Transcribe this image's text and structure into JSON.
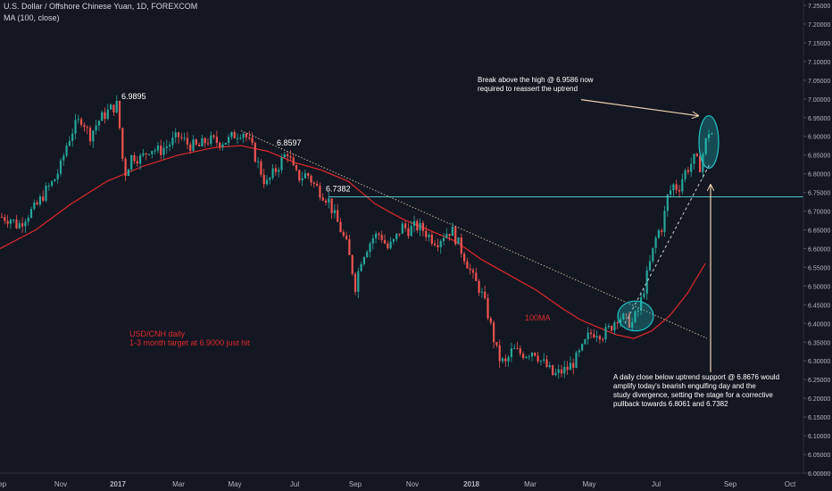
{
  "header": {
    "symbol_title": "U.S. Dollar / Offshore Chinese Yuan, 1D, FOREXCOM",
    "indicator": "MA (100, close)"
  },
  "chart_data": {
    "type": "candlestick",
    "y_axis": {
      "position": "right",
      "range": [
        6.0,
        7.25
      ],
      "ticks": [
        "7.25000",
        "7.20000",
        "7.15000",
        "7.10000",
        "7.05000",
        "7.00000",
        "6.95000",
        "6.90000",
        "6.85000",
        "6.80000",
        "6.75000",
        "6.70000",
        "6.65000",
        "6.60000",
        "6.55000",
        "6.50000",
        "6.45000",
        "6.40000",
        "6.35000",
        "6.30000",
        "6.25000",
        "6.20000",
        "6.15000",
        "6.10000",
        "6.05000",
        "6.00000"
      ]
    },
    "x_axis": {
      "ticks": [
        "Sep",
        "Nov",
        "2017",
        "Mar",
        "May",
        "Jul",
        "Sep",
        "Nov",
        "2018",
        "Mar",
        "May",
        "Jul",
        "Sep",
        "Oct"
      ],
      "tick_x": [
        0,
        68,
        132,
        200,
        263,
        330,
        398,
        462,
        528,
        594,
        660,
        735,
        818,
        885
      ],
      "range_days": [
        0,
        730
      ]
    },
    "price_path": [
      [
        0,
        6.685
      ],
      [
        12,
        6.68
      ],
      [
        20,
        6.66
      ],
      [
        30,
        6.69
      ],
      [
        40,
        6.71
      ],
      [
        50,
        6.75
      ],
      [
        60,
        6.78
      ],
      [
        68,
        6.82
      ],
      [
        75,
        6.88
      ],
      [
        82,
        6.92
      ],
      [
        92,
        6.95
      ],
      [
        100,
        6.9
      ],
      [
        110,
        6.94
      ],
      [
        118,
        6.96
      ],
      [
        125,
        6.975
      ],
      [
        132,
        6.985
      ],
      [
        136,
        6.86
      ],
      [
        140,
        6.8
      ],
      [
        148,
        6.85
      ],
      [
        158,
        6.84
      ],
      [
        168,
        6.87
      ],
      [
        178,
        6.86
      ],
      [
        190,
        6.88
      ],
      [
        200,
        6.9
      ],
      [
        210,
        6.88
      ],
      [
        222,
        6.87
      ],
      [
        232,
        6.89
      ],
      [
        245,
        6.885
      ],
      [
        256,
        6.89
      ],
      [
        263,
        6.905
      ],
      [
        272,
        6.915
      ],
      [
        282,
        6.87
      ],
      [
        290,
        6.82
      ],
      [
        298,
        6.77
      ],
      [
        306,
        6.8
      ],
      [
        314,
        6.83
      ],
      [
        322,
        6.86
      ],
      [
        330,
        6.8
      ],
      [
        336,
        6.79
      ],
      [
        344,
        6.8
      ],
      [
        352,
        6.77
      ],
      [
        360,
        6.75
      ],
      [
        368,
        6.73
      ],
      [
        374,
        6.69
      ],
      [
        380,
        6.66
      ],
      [
        388,
        6.61
      ],
      [
        394,
        6.55
      ],
      [
        398,
        6.5
      ],
      [
        404,
        6.57
      ],
      [
        410,
        6.6
      ],
      [
        418,
        6.63
      ],
      [
        426,
        6.64
      ],
      [
        434,
        6.6
      ],
      [
        442,
        6.62
      ],
      [
        450,
        6.66
      ],
      [
        458,
        6.65
      ],
      [
        466,
        6.66
      ],
      [
        474,
        6.65
      ],
      [
        482,
        6.63
      ],
      [
        490,
        6.62
      ],
      [
        498,
        6.64
      ],
      [
        506,
        6.65
      ],
      [
        514,
        6.61
      ],
      [
        522,
        6.57
      ],
      [
        530,
        6.52
      ],
      [
        538,
        6.49
      ],
      [
        546,
        6.43
      ],
      [
        552,
        6.37
      ],
      [
        558,
        6.31
      ],
      [
        566,
        6.29
      ],
      [
        574,
        6.33
      ],
      [
        582,
        6.32
      ],
      [
        590,
        6.32
      ],
      [
        598,
        6.33
      ],
      [
        606,
        6.3
      ],
      [
        614,
        6.28
      ],
      [
        620,
        6.26
      ],
      [
        628,
        6.27
      ],
      [
        636,
        6.28
      ],
      [
        644,
        6.3
      ],
      [
        652,
        6.33
      ],
      [
        660,
        6.37
      ],
      [
        668,
        6.38
      ],
      [
        676,
        6.37
      ],
      [
        684,
        6.39
      ],
      [
        692,
        6.42
      ],
      [
        700,
        6.41
      ],
      [
        708,
        6.4
      ],
      [
        716,
        6.44
      ],
      [
        724,
        6.52
      ],
      [
        730,
        6.58
      ],
      [
        736,
        6.64
      ],
      [
        742,
        6.66
      ],
      [
        748,
        6.74
      ],
      [
        754,
        6.77
      ],
      [
        760,
        6.76
      ],
      [
        766,
        6.8
      ],
      [
        772,
        6.82
      ],
      [
        778,
        6.84
      ],
      [
        784,
        6.82
      ],
      [
        790,
        6.88
      ],
      [
        796,
        6.93
      ],
      [
        800,
        6.86
      ]
    ],
    "ma100_path": [
      [
        0,
        6.6
      ],
      [
        40,
        6.65
      ],
      [
        80,
        6.72
      ],
      [
        120,
        6.78
      ],
      [
        160,
        6.82
      ],
      [
        200,
        6.85
      ],
      [
        240,
        6.87
      ],
      [
        270,
        6.875
      ],
      [
        300,
        6.86
      ],
      [
        330,
        6.83
      ],
      [
        360,
        6.81
      ],
      [
        390,
        6.78
      ],
      [
        420,
        6.72
      ],
      [
        450,
        6.68
      ],
      [
        480,
        6.65
      ],
      [
        510,
        6.62
      ],
      [
        540,
        6.57
      ],
      [
        570,
        6.53
      ],
      [
        600,
        6.49
      ],
      [
        630,
        6.44
      ],
      [
        650,
        6.41
      ],
      [
        670,
        6.39
      ],
      [
        690,
        6.37
      ],
      [
        710,
        6.36
      ],
      [
        730,
        6.38
      ],
      [
        750,
        6.42
      ],
      [
        770,
        6.48
      ],
      [
        790,
        6.56
      ]
    ],
    "horizontal_line": {
      "value": 6.7382,
      "x_from": 368,
      "x_to": 932,
      "color": "#4fc3c8"
    },
    "trend_lines": [
      {
        "from": [
          270,
          6.915
        ],
        "to": [
          792,
          6.36
        ],
        "style": "dotted",
        "color": "#c9b29b"
      },
      {
        "from": [
          700,
          6.4
        ],
        "to": [
          796,
          6.83
        ],
        "style": "dashed",
        "color": "#d1d4dc"
      }
    ],
    "highlight_ellipses": [
      {
        "cx": 712,
        "cy": 6.42,
        "rx": 20,
        "ry": 0.04
      },
      {
        "cx": 794,
        "cy": 6.885,
        "rx": 11,
        "ry": 0.07
      }
    ],
    "price_labels": [
      {
        "text": "6.9895",
        "x": 136,
        "y": 7.0
      },
      {
        "text": "6.8597",
        "x": 310,
        "y": 6.875
      },
      {
        "text": "6.7382",
        "x": 365,
        "y": 6.753
      }
    ],
    "annotations": {
      "top_right": [
        "Break above the high @ 6.9586 now",
        "required to reassert the uptrend"
      ],
      "bottom_right": [
        "A daily close below uptrend support @ 6.8676 would",
        "amplify today's bearish engulfing day and the",
        "study divergence, setting the stage for a corrective",
        "pullback towards 6.8061 and 6.7382"
      ],
      "left": [
        "USD/CNH daily",
        "1-3 month target at 6.9000 just hit"
      ],
      "ma_label": "100MA"
    },
    "arrows": [
      {
        "from": [
          651,
          6.998
        ],
        "to": [
          782,
          6.955
        ],
        "color": "#f0d2b0"
      },
      {
        "from": [
          796,
          6.27
        ],
        "to": [
          796,
          6.77
        ],
        "color": "#f0d2b0"
      }
    ],
    "colors": {
      "background": "#131722",
      "up": "#26a69a",
      "down": "#ef5350",
      "ma": "#e0292b",
      "axis_text": "#b2b5be",
      "annotation_red": "#e0292b",
      "ellipse": "#22c3c8"
    }
  }
}
